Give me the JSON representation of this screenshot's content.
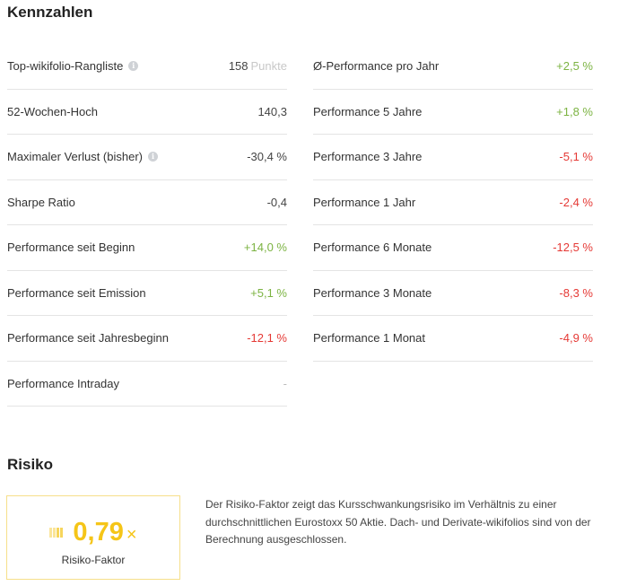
{
  "kennzahlen": {
    "title": "Kennzahlen",
    "left": [
      {
        "label": "Top-wikifolio-Rangliste",
        "info": true,
        "value": "158",
        "unit": "Punkte",
        "tone": "default"
      },
      {
        "label": "52-Wochen-Hoch",
        "info": false,
        "value": "140,3",
        "tone": "default"
      },
      {
        "label": "Maximaler Verlust (bisher)",
        "info": true,
        "value": "-30,4 %",
        "tone": "default"
      },
      {
        "label": "Sharpe Ratio",
        "info": false,
        "value": "-0,4",
        "tone": "default"
      },
      {
        "label": "Performance seit Beginn",
        "info": false,
        "value": "+14,0 %",
        "tone": "pos"
      },
      {
        "label": "Performance seit Emission",
        "info": false,
        "value": "+5,1 %",
        "tone": "pos"
      },
      {
        "label": "Performance seit Jahresbeginn",
        "info": false,
        "value": "-12,1 %",
        "tone": "neg"
      },
      {
        "label": "Performance Intraday",
        "info": false,
        "value": "-",
        "tone": "neutral"
      }
    ],
    "right": [
      {
        "label": "Ø-Performance pro Jahr",
        "value": "+2,5 %",
        "tone": "pos"
      },
      {
        "label": "Performance 5 Jahre",
        "value": "+1,8 %",
        "tone": "pos"
      },
      {
        "label": "Performance 3 Jahre",
        "value": "-5,1 %",
        "tone": "neg"
      },
      {
        "label": "Performance 1 Jahr",
        "value": "-2,4 %",
        "tone": "neg"
      },
      {
        "label": "Performance 6 Monate",
        "value": "-12,5 %",
        "tone": "neg"
      },
      {
        "label": "Performance 3 Monate",
        "value": "-8,3 %",
        "tone": "neg"
      },
      {
        "label": "Performance 1 Monat",
        "value": "-4,9 %",
        "tone": "neg"
      }
    ]
  },
  "risiko": {
    "title": "Risiko",
    "value": "0,79",
    "multiplier": "×",
    "label": "Risiko-Faktor",
    "description": "Der Risiko-Faktor zeigt das Kursschwankungsrisiko im Verhältnis zu einer durchschnittlichen Eurostoxx 50 Aktie. Dach- und Derivate-wikifolios sind von der Berechnung ausgeschlossen."
  },
  "colors": {
    "positive": "#7cb342",
    "negative": "#e53935",
    "accent": "#f5c518"
  },
  "icons": {
    "info": "info-icon",
    "risk_bars": "risk-bars-icon"
  }
}
